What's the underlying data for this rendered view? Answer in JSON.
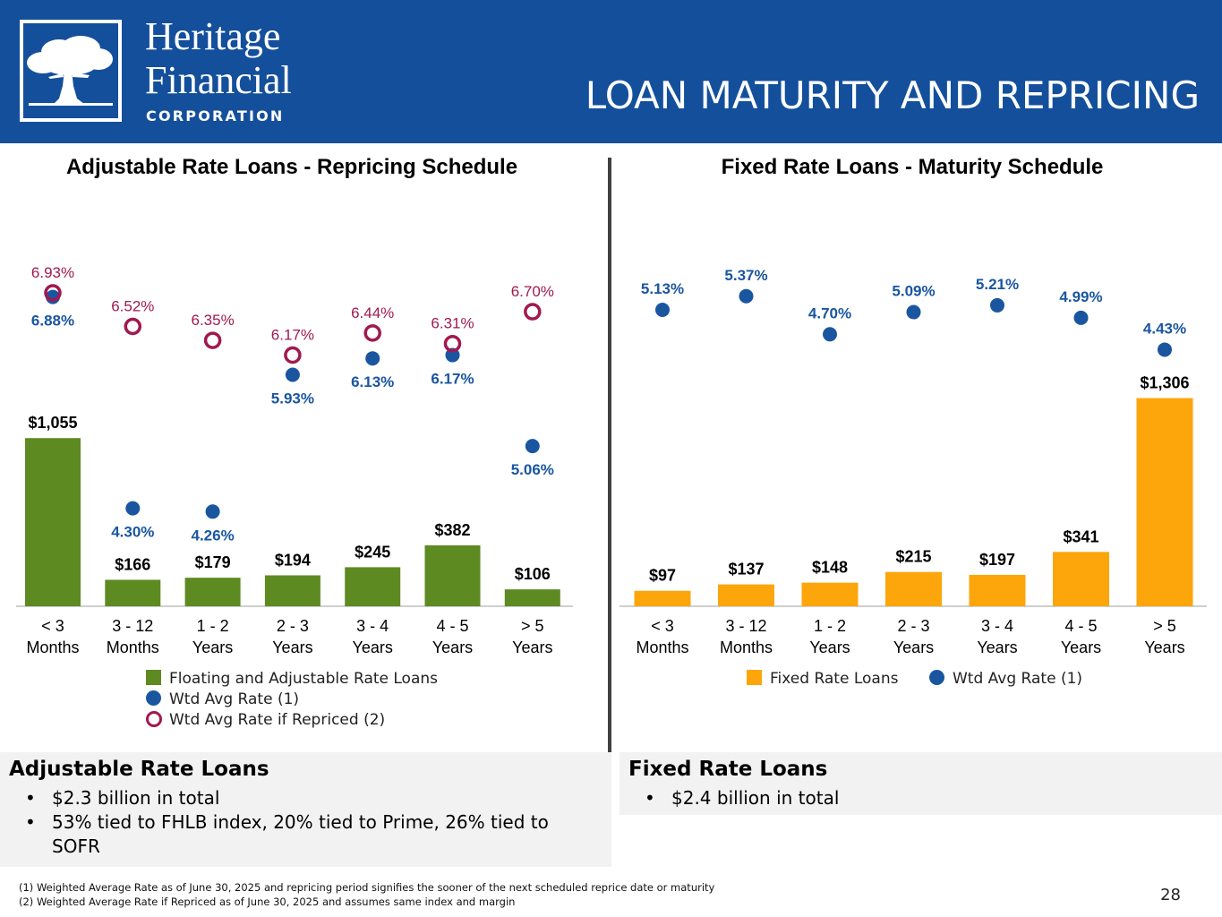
{
  "brand": {
    "name_line1": "Heritage",
    "name_line2": "Financial",
    "name_line3": "CORPORATION",
    "logo_icon": "oak-tree-icon",
    "header_color": "#144f9c"
  },
  "page_title": "LOAN MATURITY AND REPRICING",
  "page_number": "28",
  "colors": {
    "adjustable_bar": "#5e8a22",
    "fixed_bar": "#fca60c",
    "wtd_avg_rate": "#1a56a0",
    "repriced_rate": "#a1194f"
  },
  "chart_data": [
    {
      "type": "bar",
      "title": "Adjustable Rate Loans - Repricing Schedule",
      "categories": [
        "< 3\nMonths",
        "3 - 12\nMonths",
        "1 - 2\nYears",
        "2 - 3\nYears",
        "3 - 4\nYears",
        "4 - 5\nYears",
        "> 5\nYears"
      ],
      "series": [
        {
          "name": "Floating and Adjustable Rate Loans",
          "kind": "bar",
          "values": [
            1055,
            166,
            179,
            194,
            245,
            382,
            106
          ],
          "labels": [
            "$1,055",
            "$166",
            "$179",
            "$194",
            "$245",
            "$382",
            "$106"
          ]
        },
        {
          "name": "Wtd Avg Rate (1)",
          "kind": "dot",
          "values": [
            6.88,
            4.3,
            4.26,
            5.93,
            6.13,
            6.17,
            5.06
          ],
          "labels": [
            "6.88%",
            "4.30%",
            "4.26%",
            "5.93%",
            "6.13%",
            "6.17%",
            "5.06%"
          ]
        },
        {
          "name": "Wtd Avg Rate if Repriced (2)",
          "kind": "ring",
          "values": [
            6.93,
            6.52,
            6.35,
            6.17,
            6.44,
            6.31,
            6.7
          ],
          "labels": [
            "6.93%",
            "6.52%",
            "6.35%",
            "6.17%",
            "6.44%",
            "6.31%",
            "6.70%"
          ]
        }
      ],
      "legend_position": "bottom",
      "grid": false
    },
    {
      "type": "bar",
      "title": "Fixed Rate Loans - Maturity Schedule",
      "categories": [
        "< 3\nMonths",
        "3 - 12\nMonths",
        "1 - 2\nYears",
        "2 - 3\nYears",
        "3 - 4\nYears",
        "4 - 5\nYears",
        "> 5\nYears"
      ],
      "series": [
        {
          "name": "Fixed Rate Loans",
          "kind": "bar",
          "values": [
            97,
            137,
            148,
            215,
            197,
            341,
            1306
          ],
          "labels": [
            "$97",
            "$137",
            "$148",
            "$215",
            "$197",
            "$341",
            "$1,306"
          ]
        },
        {
          "name": "Wtd Avg Rate (1)",
          "kind": "dot",
          "values": [
            5.13,
            5.37,
            4.7,
            5.09,
            5.21,
            4.99,
            4.43
          ],
          "labels": [
            "5.13%",
            "5.37%",
            "4.70%",
            "5.09%",
            "5.21%",
            "4.99%",
            "4.43%"
          ]
        }
      ],
      "legend_position": "bottom",
      "grid": false
    }
  ],
  "summary_adjustable": {
    "title": "Adjustable Rate Loans",
    "bullets": [
      "$2.3 billion in total",
      "53% tied to FHLB index, 20% tied to Prime, 26% tied to SOFR"
    ]
  },
  "summary_fixed": {
    "title": "Fixed Rate Loans",
    "bullets": [
      "$2.4 billion in total"
    ]
  },
  "footnotes": [
    "(1) Weighted Average Rate as of June 30, 2025 and repricing period signifies the sooner of the next scheduled reprice date or maturity",
    "(2) Weighted Average Rate if Repriced as of June 30, 2025 and assumes same index and margin"
  ]
}
